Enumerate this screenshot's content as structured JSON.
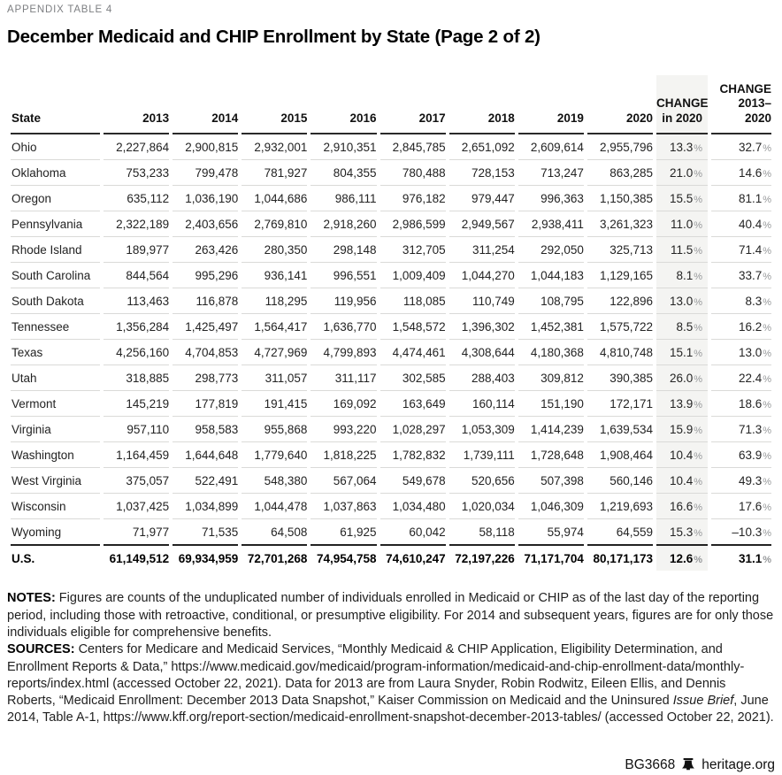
{
  "page": {
    "eyebrow": "APPENDIX TABLE 4",
    "title": "December Medicaid and CHIP Enrollment by State (Page 2 of 2)"
  },
  "table": {
    "col_state": "State",
    "col_years": [
      "2013",
      "2014",
      "2015",
      "2016",
      "2017",
      "2018",
      "2019",
      "2020"
    ],
    "col_change_2020": "CHANGE\nin 2020",
    "col_change_2013_2020": "CHANGE\n2013–\n2020",
    "rows": [
      {
        "state": "Ohio",
        "values": [
          "2,227,864",
          "2,900,815",
          "2,932,001",
          "2,910,351",
          "2,845,785",
          "2,651,092",
          "2,609,614",
          "2,955,796"
        ],
        "change_2020": "13.3%",
        "change_2013_2020": "32.7%"
      },
      {
        "state": "Oklahoma",
        "values": [
          "753,233",
          "799,478",
          "781,927",
          "804,355",
          "780,488",
          "728,153",
          "713,247",
          "863,285"
        ],
        "change_2020": "21.0%",
        "change_2013_2020": "14.6%"
      },
      {
        "state": "Oregon",
        "values": [
          "635,112",
          "1,036,190",
          "1,044,686",
          "986,111",
          "976,182",
          "979,447",
          "996,363",
          "1,150,385"
        ],
        "change_2020": "15.5%",
        "change_2013_2020": "81.1%"
      },
      {
        "state": "Pennsylvania",
        "values": [
          "2,322,189",
          "2,403,656",
          "2,769,810",
          "2,918,260",
          "2,986,599",
          "2,949,567",
          "2,938,411",
          "3,261,323"
        ],
        "change_2020": "11.0%",
        "change_2013_2020": "40.4%"
      },
      {
        "state": "Rhode Island",
        "values": [
          "189,977",
          "263,426",
          "280,350",
          "298,148",
          "312,705",
          "311,254",
          "292,050",
          "325,713"
        ],
        "change_2020": "11.5%",
        "change_2013_2020": "71.4%"
      },
      {
        "state": "South Carolina",
        "values": [
          "844,564",
          "995,296",
          "936,141",
          "996,551",
          "1,009,409",
          "1,044,270",
          "1,044,183",
          "1,129,165"
        ],
        "change_2020": "8.1%",
        "change_2013_2020": "33.7%"
      },
      {
        "state": "South Dakota",
        "values": [
          "113,463",
          "116,878",
          "118,295",
          "119,956",
          "118,085",
          "110,749",
          "108,795",
          "122,896"
        ],
        "change_2020": "13.0%",
        "change_2013_2020": "8.3%"
      },
      {
        "state": "Tennessee",
        "values": [
          "1,356,284",
          "1,425,497",
          "1,564,417",
          "1,636,770",
          "1,548,572",
          "1,396,302",
          "1,452,381",
          "1,575,722"
        ],
        "change_2020": "8.5%",
        "change_2013_2020": "16.2%"
      },
      {
        "state": "Texas",
        "values": [
          "4,256,160",
          "4,704,853",
          "4,727,969",
          "4,799,893",
          "4,474,461",
          "4,308,644",
          "4,180,368",
          "4,810,748"
        ],
        "change_2020": "15.1%",
        "change_2013_2020": "13.0%"
      },
      {
        "state": "Utah",
        "values": [
          "318,885",
          "298,773",
          "311,057",
          "311,117",
          "302,585",
          "288,403",
          "309,812",
          "390,385"
        ],
        "change_2020": "26.0%",
        "change_2013_2020": "22.4%"
      },
      {
        "state": "Vermont",
        "values": [
          "145,219",
          "177,819",
          "191,415",
          "169,092",
          "163,649",
          "160,114",
          "151,190",
          "172,171"
        ],
        "change_2020": "13.9%",
        "change_2013_2020": "18.6%"
      },
      {
        "state": "Virginia",
        "values": [
          "957,110",
          "958,583",
          "955,868",
          "993,220",
          "1,028,297",
          "1,053,309",
          "1,414,239",
          "1,639,534"
        ],
        "change_2020": "15.9%",
        "change_2013_2020": "71.3%"
      },
      {
        "state": "Washington",
        "values": [
          "1,164,459",
          "1,644,648",
          "1,779,640",
          "1,818,225",
          "1,782,832",
          "1,739,111",
          "1,728,648",
          "1,908,464"
        ],
        "change_2020": "10.4%",
        "change_2013_2020": "63.9%"
      },
      {
        "state": "West Virginia",
        "values": [
          "375,057",
          "522,491",
          "548,380",
          "567,064",
          "549,678",
          "520,656",
          "507,398",
          "560,146"
        ],
        "change_2020": "10.4%",
        "change_2013_2020": "49.3%"
      },
      {
        "state": "Wisconsin",
        "values": [
          "1,037,425",
          "1,034,899",
          "1,044,478",
          "1,037,863",
          "1,034,480",
          "1,020,034",
          "1,046,309",
          "1,219,693"
        ],
        "change_2020": "16.6%",
        "change_2013_2020": "17.6%"
      },
      {
        "state": "Wyoming",
        "values": [
          "71,977",
          "71,535",
          "64,508",
          "61,925",
          "60,042",
          "58,118",
          "55,974",
          "64,559"
        ],
        "change_2020": "15.3%",
        "change_2013_2020": "–10.3%"
      }
    ],
    "total": {
      "state": "U.S.",
      "values": [
        "61,149,512",
        "69,934,959",
        "72,701,268",
        "74,954,758",
        "74,610,247",
        "72,197,226",
        "71,171,704",
        "80,171,173"
      ],
      "change_2020": "12.6%",
      "change_2013_2020": "31.1%"
    }
  },
  "notes": {
    "notes_label": "NOTES:",
    "notes_text": " Figures are counts of the unduplicated number of individuals enrolled in Medicaid or CHIP as of the last day of the reporting period, including those with retroactive, conditional, or presumptive eligibility. For 2014 and subsequent years, figures are for only those individuals eligible for comprehensive benefits.",
    "sources_label": "SOURCES:",
    "sources_text_1": " Centers for Medicare and Medicaid Services, “Monthly Medicaid & CHIP Application, Eligibility Determination, and Enrollment Reports & Data,” https://www.medicaid.gov/medicaid/program-information/medicaid-and-chip-enrollment-data/monthly-reports/index.html (accessed October 22, 2021). Data for 2013 are from Laura Snyder, Robin Rodwitz, Eileen Ellis, and Dennis Roberts, “Medicaid Enrollment: December 2013 Data Snapshot,” Kaiser Commission on Medicaid and the Uninsured ",
    "sources_italic": "Issue Brief",
    "sources_text_2": ", June 2014, Table A-1, https://www.kff.org/report-section/medicaid-enrollment-snapshot-december-2013-tables/ (accessed October 22, 2021)."
  },
  "footer": {
    "doc_code": "BG3668",
    "site": "heritage.org",
    "bell_icon": "liberty-bell-icon"
  },
  "colors": {
    "shade_column_bg": "#f4f4f2",
    "header_rule": "#2a2a2a",
    "row_rule": "#dadad8",
    "eyebrow_gray": "#7d7f82",
    "percent_gray": "#97999b"
  }
}
